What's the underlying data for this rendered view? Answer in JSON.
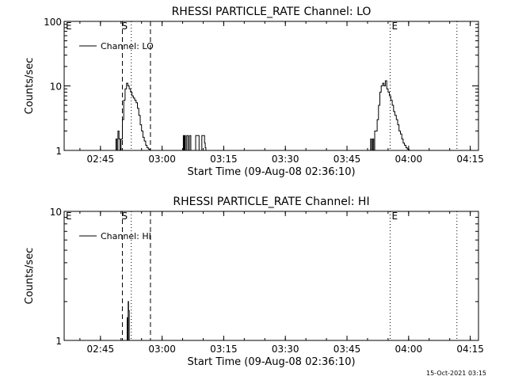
{
  "chart_data": [
    {
      "type": "line",
      "title": "RHESSI PARTICLE_RATE Channel: LO",
      "xlabel": "Start Time (09-Aug-08 02:36:10)",
      "ylabel": "Counts/sec",
      "y_scale": "log",
      "ylim": [
        1,
        100
      ],
      "y_ticks": [
        1,
        10,
        100
      ],
      "y_tick_labels": [
        "1",
        "10",
        "100"
      ],
      "xlim": [
        "02:36:10",
        "04:17:00"
      ],
      "x_ticks": [
        "02:45",
        "03:00",
        "03:15",
        "03:30",
        "03:45",
        "04:00",
        "04:15"
      ],
      "legend": "upper-left",
      "series": [
        {
          "name": "Channel: LO",
          "x": [
            "02:48:30",
            "02:48:45",
            "02:49:00",
            "02:49:15",
            "02:49:30",
            "02:49:45",
            "02:50:00",
            "02:50:20",
            "02:50:40",
            "02:51:00",
            "02:51:20",
            "02:51:40",
            "02:52:00",
            "02:52:20",
            "02:52:40",
            "02:53:00",
            "02:53:20",
            "02:53:40",
            "02:54:00",
            "02:54:20",
            "02:54:40",
            "02:55:00",
            "02:55:20",
            "02:55:40",
            "02:56:00",
            "02:56:20",
            "02:56:40",
            "02:57:00",
            "03:05:00",
            "03:05:10",
            "03:05:20",
            "03:05:30",
            "03:05:40",
            "03:05:50",
            "03:06:00",
            "03:06:10",
            "03:06:20",
            "03:06:30",
            "03:06:40",
            "03:06:50",
            "03:07:00",
            "03:08:00",
            "03:08:10",
            "03:08:20",
            "03:08:30",
            "03:08:40",
            "03:08:50",
            "03:09:00",
            "03:09:30",
            "03:09:40",
            "03:09:50",
            "03:10:00",
            "03:10:10",
            "03:10:20",
            "03:10:30",
            "03:10:40",
            "03:50:30",
            "03:50:45",
            "03:51:00",
            "03:51:15",
            "03:51:30",
            "03:51:45",
            "03:52:00",
            "03:52:20",
            "03:52:40",
            "03:53:00",
            "03:53:20",
            "03:53:40",
            "03:54:00",
            "03:54:20",
            "03:54:40",
            "03:55:00",
            "03:55:20",
            "03:55:40",
            "03:56:00",
            "03:56:20",
            "03:56:40",
            "03:57:00",
            "03:57:20",
            "03:57:40",
            "03:58:00",
            "03:58:20",
            "03:58:40",
            "03:59:00",
            "03:59:20",
            "03:59:40",
            "04:00:00",
            "04:00:10"
          ],
          "y": [
            1,
            1.5,
            1,
            2,
            1.5,
            1,
            1.5,
            3,
            6,
            9,
            11,
            10,
            9,
            8,
            7,
            6.5,
            6,
            5.5,
            4.5,
            3.5,
            2.5,
            2,
            1.6,
            1.4,
            1.2,
            1.1,
            1.05,
            1,
            1,
            1.7,
            1,
            1.7,
            1,
            1,
            1.7,
            1.7,
            1,
            1,
            1.7,
            1.7,
            1,
            1,
            1.7,
            1.7,
            1.7,
            1.7,
            1.7,
            1,
            1,
            1.7,
            1.7,
            1.7,
            1.7,
            1.3,
            1.1,
            1,
            1,
            1.5,
            1,
            1.5,
            1,
            2,
            2,
            3,
            5,
            8,
            10,
            11,
            10,
            12,
            9,
            8,
            7,
            6,
            5,
            4,
            3.5,
            3,
            2.5,
            2,
            1.8,
            1.5,
            1.3,
            1.2,
            1.1,
            1.05,
            1.02,
            1
          ]
        }
      ],
      "annotations": [
        {
          "text": "E",
          "x": "02:36:10"
        },
        {
          "text": "S",
          "x": "02:49:45"
        },
        {
          "text": "E",
          "x": "03:55:30"
        }
      ],
      "vlines": {
        "dashed": [
          "02:50:20",
          "02:57:10"
        ],
        "dotted": [
          "02:52:30",
          "03:55:30",
          "04:11:45"
        ]
      }
    },
    {
      "type": "line",
      "title": "RHESSI PARTICLE_RATE Channel: HI",
      "xlabel": "Start Time (09-Aug-08 02:36:10)",
      "ylabel": "Counts/sec",
      "y_scale": "log",
      "ylim": [
        1,
        10
      ],
      "y_ticks": [
        1,
        10
      ],
      "y_tick_labels": [
        "1",
        "10"
      ],
      "xlim": [
        "02:36:10",
        "04:17:00"
      ],
      "x_ticks": [
        "02:45",
        "03:00",
        "03:15",
        "03:30",
        "03:45",
        "04:00",
        "04:15"
      ],
      "legend": "upper-left",
      "series": [
        {
          "name": "Channel: HI",
          "x": [
            "02:51:20",
            "02:51:30",
            "02:51:40",
            "02:51:45",
            "02:51:50",
            "02:52:00",
            "02:52:10"
          ],
          "y": [
            1,
            1.5,
            1,
            2,
            1.7,
            1,
            1
          ]
        }
      ],
      "annotations": [
        {
          "text": "E",
          "x": "02:36:10"
        },
        {
          "text": "S",
          "x": "02:49:45"
        },
        {
          "text": "E",
          "x": "03:55:30"
        }
      ],
      "vlines": {
        "dashed": [
          "02:50:20",
          "02:57:10"
        ],
        "dotted": [
          "02:52:30",
          "03:55:30",
          "04:11:45"
        ]
      }
    }
  ],
  "footer": {
    "timestamp": "15-Oct-2021 03:15"
  }
}
